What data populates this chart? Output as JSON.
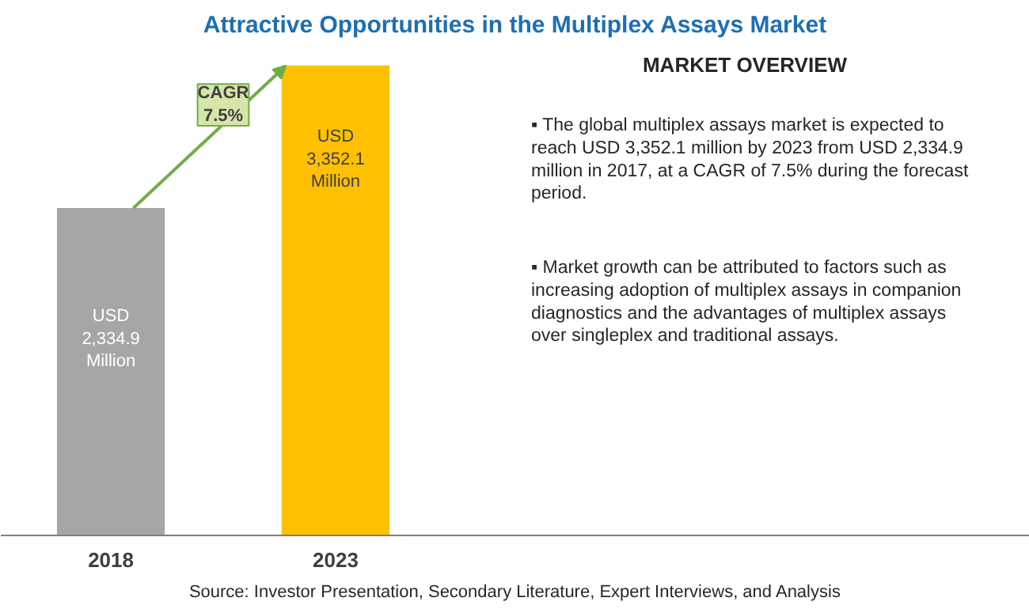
{
  "chart_data": {
    "type": "bar",
    "title": "Attractive Opportunities in the Multiplex Assays Market",
    "categories": [
      "2018",
      "2023"
    ],
    "values": [
      2334.9,
      3352.1
    ],
    "colors": [
      "#a6a6a6",
      "#ffc000"
    ],
    "value_labels": [
      "USD\n2,334.9\nMillion",
      "USD\n3,352.1\nMillion"
    ],
    "annotations": [
      "CAGR\n7.5%",
      "MARKET OVERVIEW",
      "▪  The global multiplex assays market is expected to\nreach USD 3,352.1 million by 2023 from USD 2,334.9\nmillion in 2017, at a CAGR of 7.5% during the forecast\nperiod.",
      "▪  Market growth can be attributed to factors such as\nincreasing adoption of multiplex assays in companion\ndiagnostics and the advantages of multiplex assays\nover singleplex and traditional assays.",
      "Source: Investor Presentation, Secondary Literature, Expert Interviews, and Analysis"
    ],
    "grid": false
  }
}
